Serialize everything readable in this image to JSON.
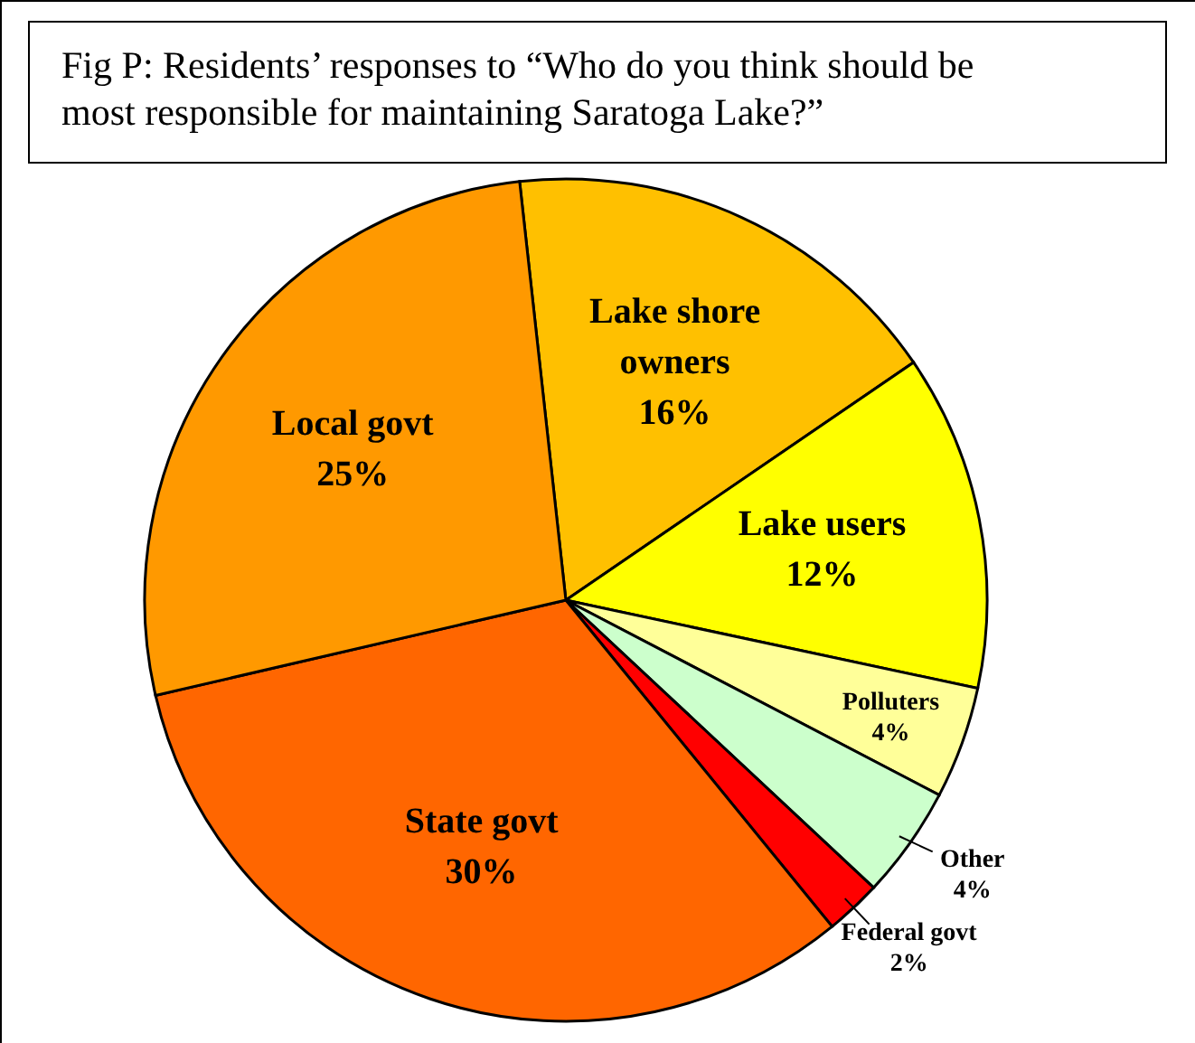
{
  "chart_data": {
    "type": "pie",
    "title": "Fig P: Residents’ responses to “Who do you think should be most responsible for maintaining Saratoga Lake?”",
    "categories": [
      "Lake shore owners",
      "Lake users",
      "Polluters",
      "Other",
      "Federal govt",
      "State govt",
      "Local govt"
    ],
    "values": [
      16,
      12,
      4,
      4,
      2,
      30,
      25
    ],
    "colors": [
      "#ffc000",
      "#ffff00",
      "#ffff99",
      "#ccffcc",
      "#ff0000",
      "#ff6600",
      "#ff9900"
    ],
    "value_labels": [
      "16%",
      "12%",
      "4%",
      "4%",
      "2%",
      "30%",
      "25%"
    ]
  }
}
